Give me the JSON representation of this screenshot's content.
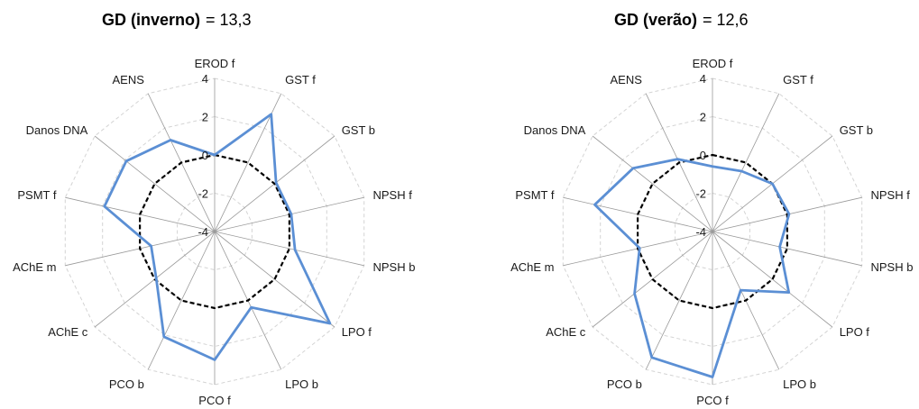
{
  "chart_data": [
    {
      "type": "radar",
      "title_name": "GD (inverno)",
      "title_value": "= 13,3",
      "axes": [
        "EROD f",
        "GST f",
        "GST b",
        "NPSH f",
        "NPSH b",
        "LPO f",
        "LPO b",
        "PCO f",
        "PCO b",
        "AChE c",
        "AChE m",
        "PSMT f",
        "Danos DNA",
        "AENS"
      ],
      "rlim": [
        -4,
        4
      ],
      "ticks": [
        4,
        2,
        0,
        -2,
        -4
      ],
      "tick_labels": [
        "4",
        "2",
        "0",
        "-2",
        "-4"
      ],
      "grid": true,
      "series": [
        {
          "values": [
            0,
            2.8,
            0.1,
            0.1,
            0.3,
            3.7,
            0.4,
            2.7,
            2.1,
            -0.1,
            -0.6,
            1.9,
            1.9,
            1.3
          ],
          "color": "#5B8FD4",
          "style": "solid"
        },
        {
          "values": [
            0,
            0,
            0,
            0,
            0,
            0,
            0,
            0,
            0,
            0,
            0,
            0,
            0,
            0
          ],
          "color": "#000000",
          "style": "dashed"
        }
      ]
    },
    {
      "type": "radar",
      "title_name": "GD (verão)",
      "title_value": "= 12,6",
      "axes": [
        "EROD f",
        "GST f",
        "GST b",
        "NPSH f",
        "NPSH b",
        "LPO f",
        "LPO b",
        "PCO f",
        "PCO b",
        "AChE c",
        "AChE m",
        "PSMT f",
        "Danos DNA",
        "AENS"
      ],
      "rlim": [
        -4,
        4
      ],
      "ticks": [
        4,
        2,
        0,
        -2,
        -4
      ],
      "tick_labels": [
        "4",
        "2",
        "0",
        "-2",
        "-4"
      ],
      "grid": true,
      "series": [
        {
          "values": [
            -0.6,
            -0.5,
            0,
            0.1,
            -0.4,
            1.1,
            -0.6,
            3.6,
            3.3,
            1.2,
            -0.1,
            2.3,
            1.3,
            0.2
          ],
          "color": "#5B8FD4",
          "style": "solid"
        },
        {
          "values": [
            0,
            0,
            0,
            0,
            0,
            0,
            0,
            0,
            0,
            0,
            0,
            0,
            0,
            0
          ],
          "color": "#000000",
          "style": "dashed"
        }
      ]
    }
  ]
}
